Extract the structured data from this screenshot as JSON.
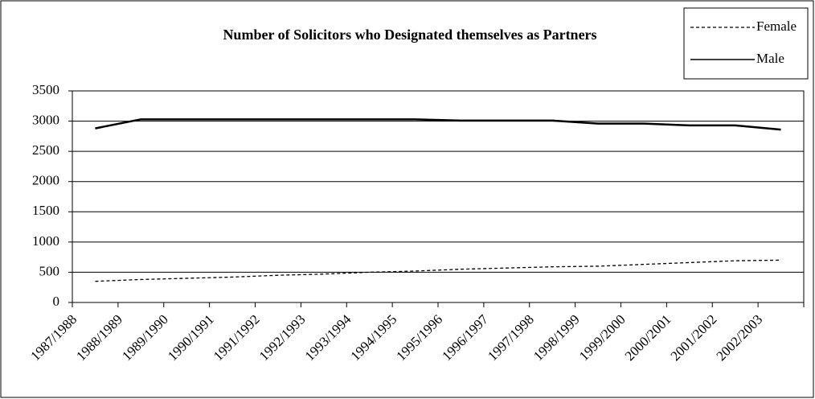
{
  "chart_data": {
    "type": "line",
    "title": "Number of Solicitors who Designated themselves as Partners",
    "categories": [
      "1987/1988",
      "1988/1989",
      "1989/1990",
      "1990/1991",
      "1991/1992",
      "1992/1993",
      "1993/1994",
      "1994/1995",
      "1995/1996",
      "1996/1997",
      "1997/1998",
      "1998/1999",
      "1999/2000",
      "2000/2001",
      "2001/2002",
      "2002/2003"
    ],
    "series": [
      {
        "name": "Female",
        "color": "#000000",
        "dash": "dashed",
        "values": [
          350,
          380,
          400,
          420,
          450,
          470,
          500,
          520,
          550,
          570,
          590,
          600,
          630,
          660,
          690,
          700
        ]
      },
      {
        "name": "Male",
        "color": "#000000",
        "dash": "solid",
        "values": [
          2880,
          3030,
          3030,
          3030,
          3030,
          3030,
          3030,
          3030,
          3010,
          3010,
          3010,
          2960,
          2960,
          2930,
          2930,
          2860
        ]
      }
    ],
    "ylim": [
      0,
      3500
    ],
    "yticks": [
      0,
      500,
      1000,
      1500,
      2000,
      2500,
      3000,
      3500
    ],
    "grid": true,
    "legend": "top-right"
  }
}
